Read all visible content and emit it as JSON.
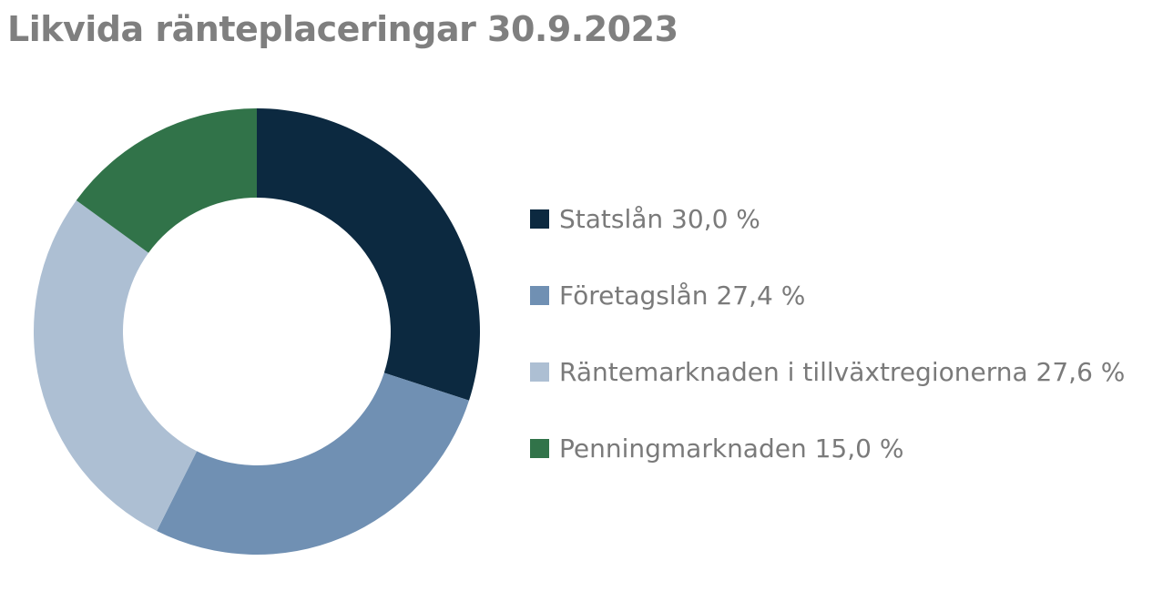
{
  "chart_data": {
    "type": "pie",
    "variant": "donut",
    "title": "Likvida ränteplaceringar 30.9.2023",
    "slices": [
      {
        "label": "Statslån 30,0 %",
        "value": 30.0,
        "color": "#0c2940"
      },
      {
        "label": "Företagslån 27,4 %",
        "value": 27.4,
        "color": "#7090b3"
      },
      {
        "label": "Räntemarknaden i tillväxtregionerna 27,6 %",
        "value": 27.6,
        "color": "#adbfd3"
      },
      {
        "label": "Penningmarknaden 15,0 %",
        "value": 15.0,
        "color": "#317349"
      }
    ],
    "legend_position": "right",
    "start_angle": "12 o'clock",
    "direction": "clockwise"
  }
}
